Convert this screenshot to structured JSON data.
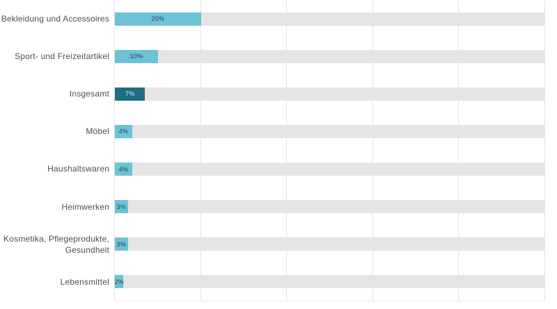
{
  "chart_data": {
    "type": "bar",
    "orientation": "horizontal",
    "categories": [
      "Bekleidung und Accessoires",
      "Sport- und Freizeitartikel",
      "Insgesamt",
      "Möbel",
      "Haushaltswaren",
      "Heimwerken",
      "Kosmetika, Pflegeprodukte,\nGesundheit",
      "Lebensmittel"
    ],
    "values": [
      20,
      10,
      7,
      4,
      4,
      3,
      3,
      2
    ],
    "value_labels": [
      "20%",
      "10%",
      "7%",
      "4%",
      "4%",
      "3%",
      "3%",
      "2%"
    ],
    "highlighted_index": 2,
    "highlighted_category": "Insgesamt",
    "xlim": [
      0,
      100
    ],
    "x_gridlines_pct": [
      0,
      20,
      40,
      60,
      80,
      100
    ],
    "grid": true,
    "legend": false,
    "xlabel": "",
    "ylabel": "",
    "colors": {
      "background": "#ffffff",
      "bar": "#6cc2d6",
      "bar_highlight": "#1f6e84",
      "track": "#e5e5e5",
      "gridline": "#e2e2e2",
      "label_text": "#4d4d4d",
      "value_text": "#2e3d44",
      "value_text_on_highlight": "#eaf1f4"
    }
  }
}
